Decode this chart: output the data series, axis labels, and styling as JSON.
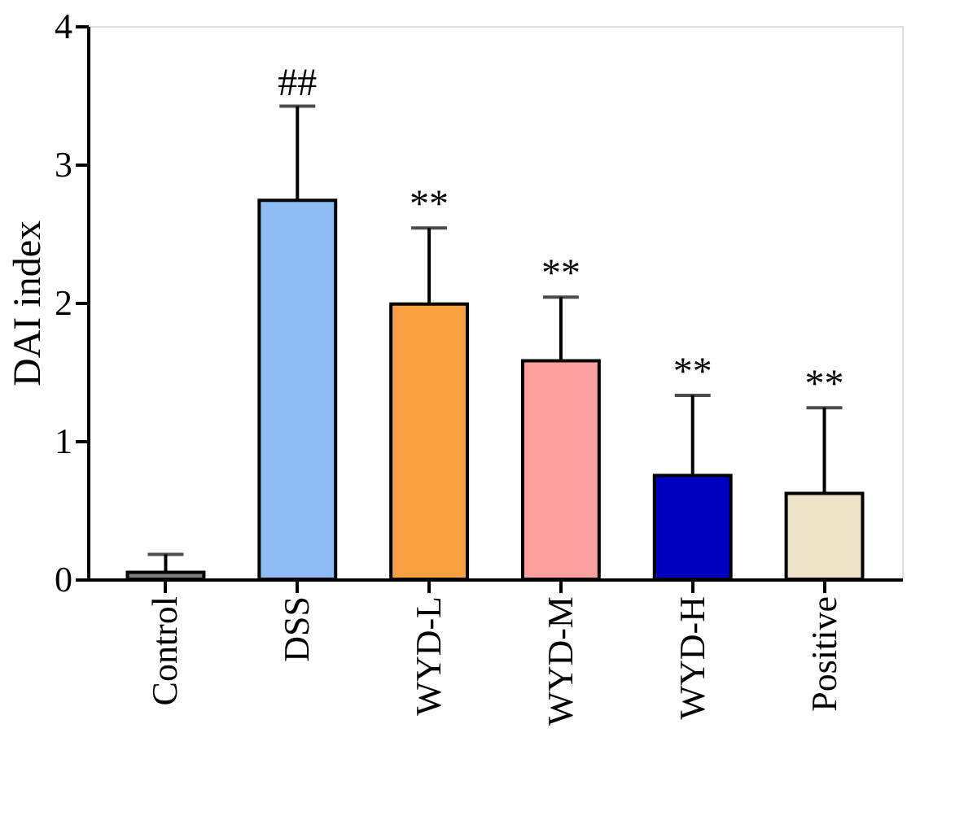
{
  "chart_data": {
    "type": "bar",
    "ylabel": "DAI index",
    "categories": [
      "Control",
      "DSS",
      "WYD-L",
      "WYD-M",
      "WYD-H",
      "Positive"
    ],
    "values": [
      0.05,
      2.74,
      1.99,
      1.58,
      0.75,
      0.62
    ],
    "colors": [
      "#7f7f7f",
      "#8fbcf5",
      "#f9a040",
      "#fca0a0",
      "#0000c0",
      "#ece3c8"
    ],
    "errors": [
      [
        0.05,
        0.18
      ],
      [
        2.74,
        3.42
      ],
      [
        1.99,
        2.54
      ],
      [
        1.58,
        2.04
      ],
      [
        0.75,
        1.33
      ],
      [
        0.62,
        1.24
      ]
    ],
    "ylim": [
      0,
      4
    ],
    "yticks": [
      0,
      1,
      2,
      3,
      4
    ],
    "grid": false,
    "annotations": [
      {
        "text": "##",
        "x": "DSS",
        "y": 3.42
      },
      {
        "text": "**",
        "x": "WYD-L",
        "y": 2.54
      },
      {
        "text": "**",
        "x": "WYD-M",
        "y": 2.04
      },
      {
        "text": "**",
        "x": "WYD-H",
        "y": 1.33
      },
      {
        "text": "**",
        "x": "Positive",
        "y": 1.24
      }
    ]
  }
}
